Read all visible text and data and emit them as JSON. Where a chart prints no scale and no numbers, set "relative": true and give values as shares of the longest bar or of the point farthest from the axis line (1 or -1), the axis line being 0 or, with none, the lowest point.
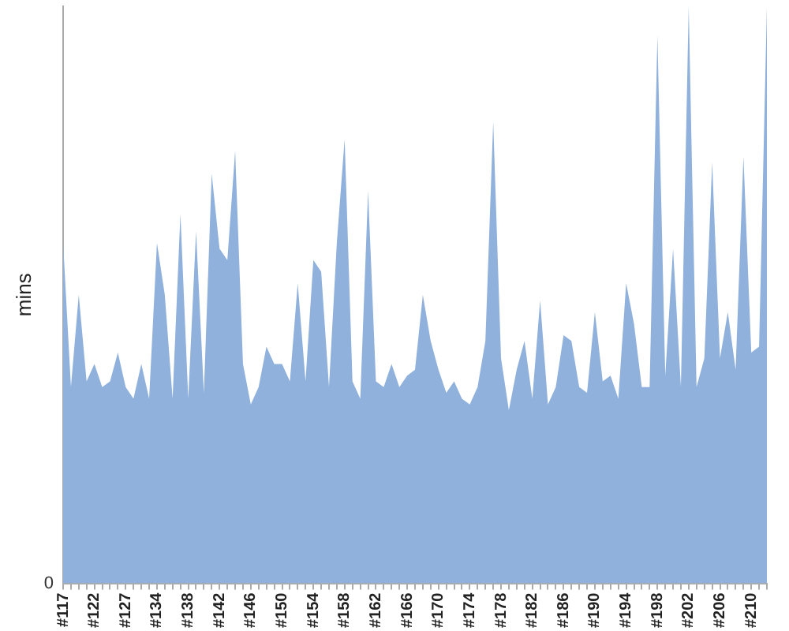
{
  "chart_data": {
    "type": "area",
    "ylabel": "mins",
    "relative": true,
    "grid": false,
    "legend": false,
    "annotations": [
      "0"
    ],
    "categories": [
      "#117",
      null,
      null,
      null,
      "#122",
      null,
      null,
      null,
      "#127",
      null,
      null,
      null,
      "#134",
      null,
      null,
      null,
      "#138",
      null,
      null,
      null,
      "#142",
      null,
      null,
      null,
      "#146",
      null,
      null,
      null,
      "#150",
      null,
      null,
      null,
      "#154",
      null,
      null,
      null,
      "#158",
      null,
      null,
      null,
      "#162",
      null,
      null,
      null,
      "#166",
      null,
      null,
      null,
      "#170",
      null,
      null,
      null,
      "#174",
      null,
      null,
      null,
      "#178",
      null,
      null,
      null,
      "#182",
      null,
      null,
      null,
      "#186",
      null,
      null,
      null,
      "#190",
      null,
      null,
      null,
      "#194",
      null,
      null,
      null,
      "#198",
      null,
      null,
      null,
      "#202",
      null,
      null,
      null,
      "#206",
      null,
      null,
      null,
      "#210",
      null,
      null
    ],
    "series": [
      {
        "color": "#8fb1dc",
        "values": [
          0.59,
          0.34,
          0.5,
          0.35,
          0.38,
          0.34,
          0.35,
          0.4,
          0.34,
          0.32,
          0.38,
          0.32,
          0.59,
          0.5,
          0.32,
          0.64,
          0.32,
          0.61,
          0.33,
          0.71,
          0.58,
          0.56,
          0.75,
          0.38,
          0.31,
          0.34,
          0.41,
          0.38,
          0.38,
          0.35,
          0.52,
          0.35,
          0.56,
          0.54,
          0.34,
          0.59,
          0.77,
          0.35,
          0.32,
          0.68,
          0.35,
          0.34,
          0.38,
          0.34,
          0.36,
          0.37,
          0.5,
          0.42,
          0.37,
          0.33,
          0.35,
          0.32,
          0.31,
          0.34,
          0.42,
          0.8,
          0.39,
          0.3,
          0.37,
          0.42,
          0.32,
          0.49,
          0.31,
          0.34,
          0.43,
          0.42,
          0.34,
          0.33,
          0.47,
          0.35,
          0.36,
          0.32,
          0.52,
          0.45,
          0.34,
          0.34,
          0.95,
          0.36,
          0.58,
          0.34,
          1,
          0.34,
          0.39,
          0.73,
          0.39,
          0.47,
          0.37,
          0.74,
          0.4,
          0.41,
          1
        ]
      }
    ]
  }
}
